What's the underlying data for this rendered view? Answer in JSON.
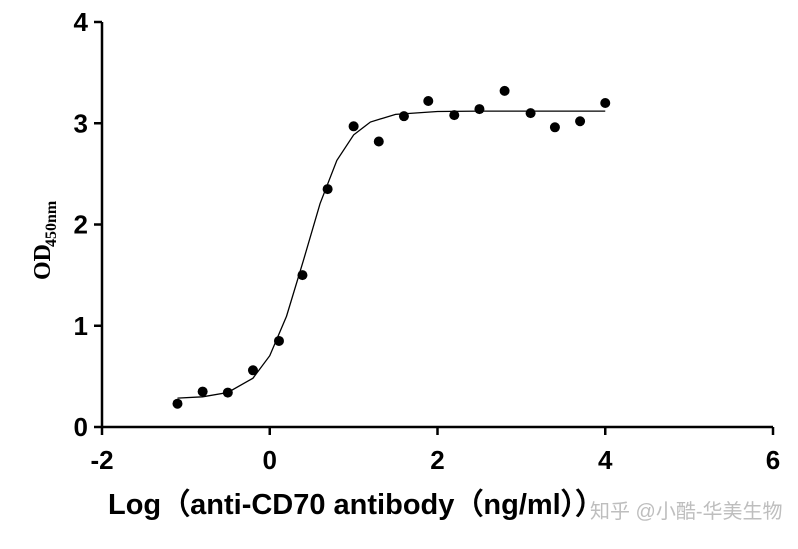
{
  "chart_data": {
    "type": "scatter",
    "xlabel": "Log（anti-CD70 antibody（ng/ml））",
    "ylabel": "OD",
    "ylabel_sub": "450nm",
    "watermark": "知乎 @小酷-华美生物",
    "xlim": [
      -2,
      6
    ],
    "xticks": [
      -2,
      0,
      2,
      4,
      6
    ],
    "ylim": [
      0,
      4
    ],
    "yticks": [
      0,
      1,
      2,
      3,
      4
    ],
    "color": "#000000",
    "x": [
      -1.1,
      -0.8,
      -0.5,
      -0.2,
      0.11,
      0.39,
      0.69,
      1.0,
      1.3,
      1.6,
      1.89,
      2.2,
      2.5,
      2.8,
      3.11,
      3.4,
      3.7,
      4.0
    ],
    "values": [
      0.23,
      0.35,
      0.34,
      0.56,
      0.85,
      1.5,
      2.35,
      2.97,
      2.82,
      3.07,
      3.22,
      3.08,
      3.14,
      3.32,
      3.1,
      2.96,
      3.02,
      3.2
    ],
    "fit": {
      "x": [
        -1.1,
        -0.8,
        -0.5,
        -0.2,
        0,
        0.2,
        0.4,
        0.6,
        0.8,
        1.0,
        1.2,
        1.5,
        2,
        2.5,
        3,
        3.5,
        4
      ],
      "values": [
        0.285,
        0.298,
        0.341,
        0.482,
        0.704,
        1.094,
        1.641,
        2.207,
        2.633,
        2.885,
        3.012,
        3.088,
        3.116,
        3.12,
        3.12,
        3.12,
        3.12
      ]
    }
  }
}
